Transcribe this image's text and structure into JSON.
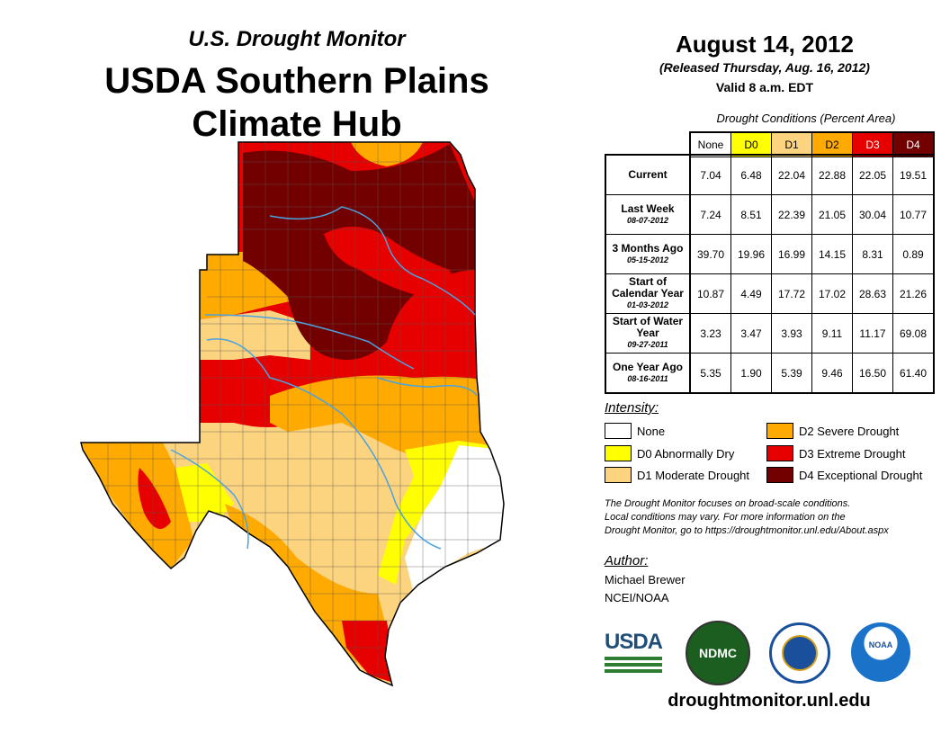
{
  "header": {
    "subtitle": "U.S. Drought Monitor",
    "title_line1": "USDA Southern Plains",
    "title_line2": "Climate Hub",
    "date": "August 14, 2012",
    "released": "(Released Thursday, Aug. 16, 2012)",
    "valid": "Valid 8 a.m. EDT"
  },
  "table": {
    "caption": "Drought Conditions (Percent Area)",
    "columns": [
      "None",
      "D0",
      "D1",
      "D2",
      "D3",
      "D4"
    ],
    "rows": [
      {
        "label": "Current",
        "date": "",
        "values": [
          "7.04",
          "6.48",
          "22.04",
          "22.88",
          "22.05",
          "19.51"
        ]
      },
      {
        "label": "Last Week",
        "date": "08-07-2012",
        "values": [
          "7.24",
          "8.51",
          "22.39",
          "21.05",
          "30.04",
          "10.77"
        ]
      },
      {
        "label": "3 Months Ago",
        "date": "05-15-2012",
        "values": [
          "39.70",
          "19.96",
          "16.99",
          "14.15",
          "8.31",
          "0.89"
        ]
      },
      {
        "label": "Start of Calendar Year",
        "date": "01-03-2012",
        "values": [
          "10.87",
          "4.49",
          "17.72",
          "17.02",
          "28.63",
          "21.26"
        ]
      },
      {
        "label": "Start of Water Year",
        "date": "09-27-2011",
        "values": [
          "3.23",
          "3.47",
          "3.93",
          "9.11",
          "11.17",
          "69.08"
        ]
      },
      {
        "label": "One Year Ago",
        "date": "08-16-2011",
        "values": [
          "5.35",
          "1.90",
          "5.39",
          "9.46",
          "16.50",
          "61.40"
        ]
      }
    ]
  },
  "legend": {
    "title": "Intensity:",
    "items": [
      {
        "label": "None",
        "color": "#ffffff"
      },
      {
        "label": "D0 Abnormally Dry",
        "color": "#ffff00"
      },
      {
        "label": "D1 Moderate Drought",
        "color": "#fcd37f"
      },
      {
        "label": "D2 Severe Drought",
        "color": "#ffaa00"
      },
      {
        "label": "D3 Extreme Drought",
        "color": "#e60000"
      },
      {
        "label": "D4 Exceptional Drought",
        "color": "#730000"
      }
    ]
  },
  "note": {
    "line1": "The Drought Monitor focuses on broad-scale conditions.",
    "line2": "Local conditions may vary. For more information on the",
    "line3": "Drought Monitor, go to https://droughtmonitor.unl.edu/About.aspx"
  },
  "author": {
    "heading": "Author:",
    "name": "Michael Brewer",
    "org": "NCEI/NOAA"
  },
  "logos": {
    "usda": "USDA",
    "ndmc": "NDMC",
    "noaa": "NOAA"
  },
  "footer": {
    "url": "droughtmonitor.unl.edu"
  }
}
